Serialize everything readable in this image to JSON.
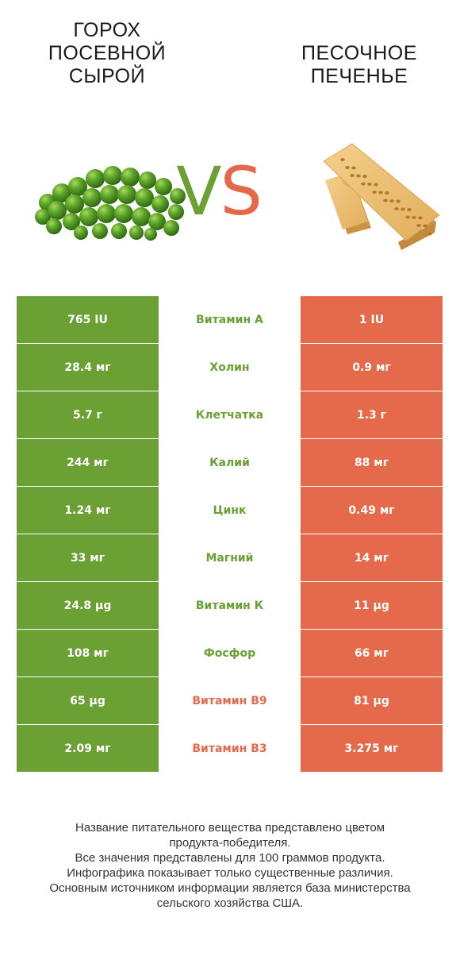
{
  "left_product": {
    "title_lines": [
      "ГОРОХ",
      "ПОСЕВНОЙ",
      "СЫРОЙ"
    ],
    "color": "#6ba034",
    "image": "peas-image"
  },
  "right_product": {
    "title_lines": [
      "ПЕСОЧНОЕ",
      "ПЕЧЕНЬЕ"
    ],
    "color": "#e46a4b",
    "image": "shortbread-cookie-image"
  },
  "vs": {
    "v": "V",
    "s": "S"
  },
  "rows": [
    {
      "left": "765 IU",
      "nutrient": "Витамин А",
      "right": "1 IU",
      "winner": "left"
    },
    {
      "left": "28.4 мг",
      "nutrient": "Холин",
      "right": "0.9 мг",
      "winner": "left"
    },
    {
      "left": "5.7 г",
      "nutrient": "Клетчатка",
      "right": "1.3 г",
      "winner": "left"
    },
    {
      "left": "244 мг",
      "nutrient": "Калий",
      "right": "88 мг",
      "winner": "left"
    },
    {
      "left": "1.24 мг",
      "nutrient": "Цинк",
      "right": "0.49 мг",
      "winner": "left"
    },
    {
      "left": "33 мг",
      "nutrient": "Магний",
      "right": "14 мг",
      "winner": "left"
    },
    {
      "left": "24.8 µg",
      "nutrient": "Витамин К",
      "right": "11 µg",
      "winner": "left"
    },
    {
      "left": "108 мг",
      "nutrient": "Фосфор",
      "right": "66 мг",
      "winner": "left"
    },
    {
      "left": "65 µg",
      "nutrient": "Витамин B9",
      "right": "81 µg",
      "winner": "right"
    },
    {
      "left": "2.09 мг",
      "nutrient": "Витамин B3",
      "right": "3.275 мг",
      "winner": "right"
    }
  ],
  "footer_lines": [
    "Название питательного вещества представлено цветом",
    "продукта-победителя.",
    "Все значения представлены для 100 граммов продукта.",
    "Инфографика показывает только существенные различия.",
    "Основным источником информации является база министерства",
    "сельского хозяйства США."
  ]
}
